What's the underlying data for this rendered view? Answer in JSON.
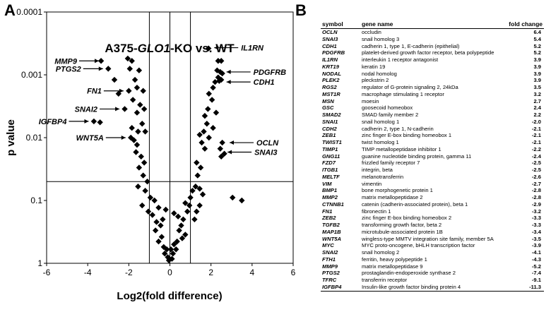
{
  "panel_a_label": "A",
  "panel_b_label": "B",
  "chart_data": {
    "type": "scatter",
    "title_prefix": "A375-",
    "title_gene": "GLO1",
    "title_suffix": "-KO vs. WT",
    "xlabel": "Log2(fold difference)",
    "ylabel": "p value",
    "xlim": [
      -6,
      6
    ],
    "ylim": [
      1,
      0.0001
    ],
    "y_scale": "log-reversed",
    "xticks": [
      -6,
      -4,
      -2,
      0,
      2,
      4,
      6
    ],
    "xtick_labels": [
      "-6",
      "-4",
      "-2",
      "0",
      "2",
      "4",
      "6"
    ],
    "yticks": [
      0.0001,
      0.001,
      0.01,
      0.1,
      1
    ],
    "ytick_labels": [
      "0.0001",
      "0.001",
      "0.01",
      "0.1",
      "1"
    ],
    "threshold_lines": {
      "x": [
        -1,
        0,
        1
      ],
      "y": [
        0.05
      ]
    },
    "marker": "diamond",
    "points": [
      [
        1.88,
        0.00038
      ],
      [
        2.35,
        0.0006
      ],
      [
        2.5,
        0.0006
      ],
      [
        2.3,
        0.00085
      ],
      [
        2.45,
        0.0009
      ],
      [
        2.55,
        0.00095
      ],
      [
        2.35,
        0.0011
      ],
      [
        2.5,
        0.0012
      ],
      [
        2.2,
        0.0013
      ],
      [
        2.4,
        0.00125
      ],
      [
        2.1,
        0.0016
      ],
      [
        1.9,
        0.002
      ],
      [
        2.05,
        0.0025
      ],
      [
        1.85,
        0.0035
      ],
      [
        2.25,
        0.004
      ],
      [
        1.7,
        0.0045
      ],
      [
        1.8,
        0.006
      ],
      [
        2.1,
        0.007
      ],
      [
        1.65,
        0.008
      ],
      [
        1.9,
        0.01
      ],
      [
        1.45,
        0.009
      ],
      [
        1.55,
        0.012
      ],
      [
        1.7,
        0.015
      ],
      [
        2.55,
        0.012
      ],
      [
        2.45,
        0.015
      ],
      [
        2.65,
        0.018
      ],
      [
        2.5,
        0.02
      ],
      [
        1.3,
        0.025
      ],
      [
        1.35,
        0.04
      ],
      [
        1.5,
        0.03
      ],
      [
        1.25,
        0.06
      ],
      [
        1.45,
        0.065
      ],
      [
        1.6,
        0.08
      ],
      [
        1.1,
        0.07
      ],
      [
        1.0,
        0.09
      ],
      [
        0.95,
        0.12
      ],
      [
        0.85,
        0.15
      ],
      [
        0.75,
        0.11
      ],
      [
        1.2,
        0.2
      ],
      [
        3.05,
        0.09
      ],
      [
        3.5,
        0.1
      ],
      [
        1.45,
        0.12
      ],
      [
        1.3,
        0.15
      ],
      [
        0.65,
        0.2
      ],
      [
        0.55,
        0.25
      ],
      [
        0.75,
        0.35
      ],
      [
        0.6,
        0.4
      ],
      [
        0.45,
        0.3
      ],
      [
        0.35,
        0.45
      ],
      [
        0.3,
        0.6
      ],
      [
        0.2,
        0.5
      ],
      [
        0.15,
        0.7
      ],
      [
        0.1,
        0.85
      ],
      [
        0.05,
        0.6
      ],
      [
        -3.35,
        0.0006
      ],
      [
        -3.0,
        0.0008
      ],
      [
        -2.7,
        0.0012
      ],
      [
        -2.5,
        0.002
      ],
      [
        -2.05,
        0.00055
      ],
      [
        -1.85,
        0.0006
      ],
      [
        -1.95,
        0.0008
      ],
      [
        -1.7,
        0.0012
      ],
      [
        -1.5,
        0.00085
      ],
      [
        -1.6,
        0.0016
      ],
      [
        -2.0,
        0.0018
      ],
      [
        -1.3,
        0.0018
      ],
      [
        -1.8,
        0.0025
      ],
      [
        -1.45,
        0.003
      ],
      [
        -1.25,
        0.0035
      ],
      [
        -2.2,
        0.0035
      ],
      [
        -1.6,
        0.004
      ],
      [
        -1.35,
        0.006
      ],
      [
        -1.85,
        0.007
      ],
      [
        -1.55,
        0.008
      ],
      [
        -1.2,
        0.008
      ],
      [
        -1.75,
        0.011
      ],
      [
        -3.7,
        0.0055
      ],
      [
        -3.4,
        0.0057
      ],
      [
        -1.9,
        0.01
      ],
      [
        -1.6,
        0.013
      ],
      [
        -1.65,
        0.017
      ],
      [
        -1.4,
        0.02
      ],
      [
        -1.25,
        0.025
      ],
      [
        -1.5,
        0.03
      ],
      [
        -1.3,
        0.04
      ],
      [
        -1.1,
        0.05
      ],
      [
        -1.55,
        0.06
      ],
      [
        -1.2,
        0.07
      ],
      [
        -0.95,
        0.09
      ],
      [
        -0.75,
        0.1
      ],
      [
        -1.35,
        0.12
      ],
      [
        -1.05,
        0.15
      ],
      [
        -0.85,
        0.17
      ],
      [
        -0.55,
        0.13
      ],
      [
        -0.65,
        0.22
      ],
      [
        -0.7,
        0.3
      ],
      [
        -0.45,
        0.25
      ],
      [
        -0.4,
        0.38
      ],
      [
        -0.55,
        0.45
      ],
      [
        -0.3,
        0.55
      ],
      [
        -0.25,
        0.7
      ],
      [
        -0.15,
        0.6
      ],
      [
        -0.1,
        0.8
      ],
      [
        -0.05,
        0.9
      ],
      [
        -0.35,
        0.2
      ],
      [
        0.2,
        0.16
      ],
      [
        0.4,
        0.18
      ],
      [
        -0.2,
        0.14
      ]
    ],
    "annotations": [
      {
        "label": "IL1RN",
        "x": 1.95,
        "y": 0.00037,
        "side": "right"
      },
      {
        "label": "PDGFRB",
        "x": 2.55,
        "y": 0.0009,
        "side": "right"
      },
      {
        "label": "CDH1",
        "x": 2.55,
        "y": 0.0013,
        "side": "right"
      },
      {
        "label": "OCLN",
        "x": 2.7,
        "y": 0.012,
        "side": "right"
      },
      {
        "label": "SNAI3",
        "x": 2.6,
        "y": 0.017,
        "side": "right"
      },
      {
        "label": "MMP9",
        "x": -3.25,
        "y": 0.0006,
        "side": "left"
      },
      {
        "label": "PTGS2",
        "x": -3.05,
        "y": 0.0008,
        "side": "left"
      },
      {
        "label": "FN1",
        "x": -2.05,
        "y": 0.0018,
        "side": "left"
      },
      {
        "label": "SNAI2",
        "x": -2.25,
        "y": 0.0035,
        "side": "left"
      },
      {
        "label": "IGFBP4",
        "x": -3.75,
        "y": 0.0055,
        "side": "left"
      },
      {
        "label": "WNT5A",
        "x": -1.95,
        "y": 0.01,
        "side": "left"
      }
    ]
  },
  "table": {
    "headers": {
      "symbol": "symbol",
      "name": "gene name",
      "fc": "fold change"
    },
    "rows": [
      {
        "symbol": "OCLN",
        "name": "occludin",
        "fc": "6.4"
      },
      {
        "symbol": "SNAI3",
        "name": "snail homolog 3",
        "fc": "5.4"
      },
      {
        "symbol": "CDH1",
        "name": "cadherin 1, type 1, E-cadherin (epithelial)",
        "fc": "5.2"
      },
      {
        "symbol": "PDGFRB",
        "name": "platelet-derived growth factor receptor, beta polypeptide",
        "fc": "5.2"
      },
      {
        "symbol": "IL1RN",
        "name": "interleukin 1 receptor antagonist",
        "fc": "3.9"
      },
      {
        "symbol": "KRT19",
        "name": "keratin 19",
        "fc": "3.9"
      },
      {
        "symbol": "NODAL",
        "name": "nodal homolog",
        "fc": "3.9"
      },
      {
        "symbol": "PLEK2",
        "name": "pleckstrin 2",
        "fc": "3.9"
      },
      {
        "symbol": "RGS2",
        "name": "regulator of G-protein signaling 2, 24kDa",
        "fc": "3.5"
      },
      {
        "symbol": "MST1R",
        "name": "macrophage stimulating 1 receptor",
        "fc": "3.2"
      },
      {
        "symbol": "MSN",
        "name": "moesin",
        "fc": "2.7"
      },
      {
        "symbol": "GSC",
        "name": "goosecoid homeobox",
        "fc": "2.4"
      },
      {
        "symbol": "SMAD2",
        "name": "SMAD family member 2",
        "fc": "2.2"
      },
      {
        "symbol": "SNAI1",
        "name": "snail homolog 1",
        "fc": "-2.0"
      },
      {
        "symbol": "CDH2",
        "name": "cadherin 2, type 1, N-cadherin",
        "fc": "-2.1"
      },
      {
        "symbol": "ZEB1",
        "name": "zinc finger E-box binding homeobox 1",
        "fc": "-2.1"
      },
      {
        "symbol": "TWIST1",
        "name": "twist homolog 1",
        "fc": "-2.1"
      },
      {
        "symbol": "TIMP1",
        "name": "TIMP metallopeptidase inhibitor 1",
        "fc": "-2.2"
      },
      {
        "symbol": "GNG11",
        "name": "guanine nucleotide binding protein, gamma 11",
        "fc": "-2.4"
      },
      {
        "symbol": "FZD7",
        "name": "frizzled family receptor 7",
        "fc": "-2.5"
      },
      {
        "symbol": "ITGB1",
        "name": "integrin, beta",
        "fc": "-2.5"
      },
      {
        "symbol": "MELTF",
        "name": "melanotransferrin",
        "fc": "-2.6"
      },
      {
        "symbol": "VIM",
        "name": "vimentin",
        "fc": "-2.7"
      },
      {
        "symbol": "BMP1",
        "name": "bone morphogenetic protein 1",
        "fc": "-2.8"
      },
      {
        "symbol": "MMP2",
        "name": "matrix metallopeptidase 2",
        "fc": "-2.8"
      },
      {
        "symbol": "CTNNB1",
        "name": "catenin (cadherin-associated protein), beta 1",
        "fc": "-2.9"
      },
      {
        "symbol": "FN1",
        "name": "fibronectin 1",
        "fc": "-3.2"
      },
      {
        "symbol": "ZEB2",
        "name": "zinc finger E-box binding homeobox 2",
        "fc": "-3.3"
      },
      {
        "symbol": "TGFB2",
        "name": "transforming growth factor, beta 2",
        "fc": "-3.3"
      },
      {
        "symbol": "MAP1B",
        "name": "microtubule-associated protein 1B",
        "fc": "-3.4"
      },
      {
        "symbol": "WNT5A",
        "name": "wingless-type MMTV integration site family, member 5A",
        "fc": "-3.5"
      },
      {
        "symbol": "MYC",
        "name": "MYC proto-oncogene, bHLH transcription factor",
        "fc": "-3.9"
      },
      {
        "symbol": "SNAI2",
        "name": "snail homolog 2",
        "fc": "-4.1"
      },
      {
        "symbol": "FTH1",
        "name": "ferritin, heavy polypeptide 1",
        "fc": "-4.3"
      },
      {
        "symbol": "MMP9",
        "name": "matrix metallopeptidase 9",
        "fc": "-5.2"
      },
      {
        "symbol": "PTGS2",
        "name": "prostaglandin-endoperoxide synthase 2",
        "fc": "-7.4"
      },
      {
        "symbol": "TFRC",
        "name": "transferrin receptor",
        "fc": "-9.1"
      },
      {
        "symbol": "IGFBP4",
        "name": "Insulin-like growth factor binding protein 4",
        "fc": "-11.3"
      }
    ]
  }
}
